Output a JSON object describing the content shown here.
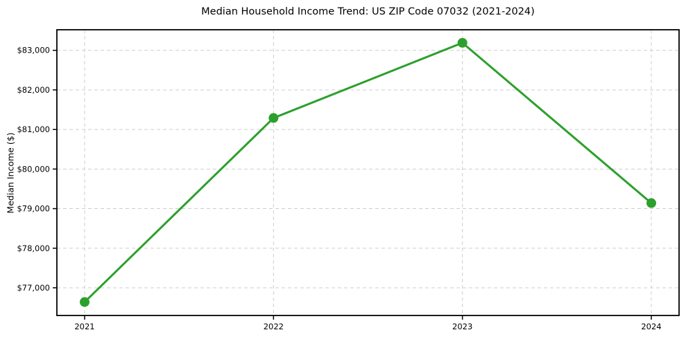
{
  "chart_data": {
    "type": "line",
    "title": "Median Household Income Trend: US ZIP Code 07032 (2021-2024)",
    "xlabel": "",
    "ylabel": "Median Income ($)",
    "categories": [
      "2021",
      "2022",
      "2023",
      "2024"
    ],
    "values": [
      76640,
      81290,
      83190,
      79140
    ],
    "ylim": [
      76300,
      83520
    ],
    "yticks": [
      77000,
      78000,
      79000,
      80000,
      81000,
      82000,
      83000
    ],
    "ytick_labels": [
      "$77,000",
      "$78,000",
      "$79,000",
      "$80,000",
      "$81,000",
      "$82,000",
      "$83,000"
    ],
    "grid": "dashed-both-axes",
    "legend": "none",
    "line_color": "#2ca02c",
    "marker": "circle",
    "marker_color": "#2ca02c",
    "background": "#ffffff",
    "grid_color": "#cdcdcd",
    "frame_color": "#000000",
    "text_color": "#000000"
  }
}
